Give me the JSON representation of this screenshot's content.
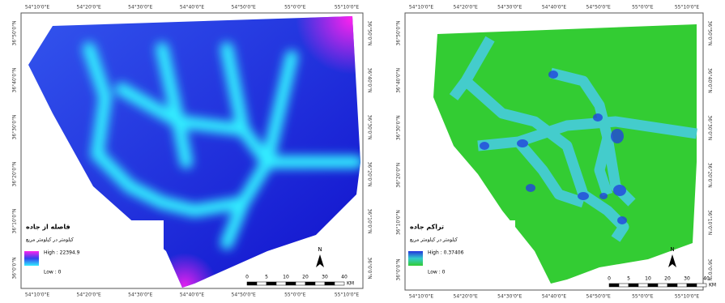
{
  "maps": [
    {
      "legend": {
        "title": "فاصله از جاده",
        "subtitle": "کیلومتر در کیلومتر مربع",
        "high": "High : 22394.9",
        "low": "Low : 0"
      },
      "north": "N",
      "scale": {
        "labels": [
          "0",
          "5",
          "10",
          "20",
          "30",
          "40"
        ],
        "unit": "KM"
      },
      "top_ticks": [
        "54°10'0\"E",
        "54°20'0\"E",
        "54°30'0\"E",
        "54°40'0\"E",
        "54°50'0\"E",
        "55°0'0\"E",
        "55°10'0\"E"
      ],
      "bottom_ticks": [
        "54°10'0\"E",
        "54°20'0\"E",
        "54°30'0\"E",
        "54°40'0\"E",
        "54°50'0\"E",
        "55°0'0\"E",
        "55°10'0\"E"
      ],
      "left_ticks": [
        "36°50'0\"N",
        "36°40'0\"N",
        "36°30'0\"N",
        "36°20'0\"N",
        "36°10'0\"N",
        "36°0'0\"N"
      ],
      "right_ticks": [
        "36°50'0\"N",
        "36°40'0\"N",
        "36°30'0\"N",
        "36°20'0\"N",
        "36°10'0\"N",
        "36°0'0\"N"
      ]
    },
    {
      "legend": {
        "title": "تراکم جاده",
        "subtitle": "کیلومتر در کیلومتر مربع",
        "high": "High : 0.37406",
        "low": "Low : 0"
      },
      "north": "N",
      "scale": {
        "labels": [
          "0",
          "5",
          "10",
          "20",
          "30",
          "40"
        ],
        "unit": "KM"
      },
      "top_ticks": [
        "54°10'0\"E",
        "54°20'0\"E",
        "54°30'0\"E",
        "54°40'0\"E",
        "54°50'0\"E",
        "55°0'0\"E",
        "55°10'0\"E"
      ],
      "bottom_ticks": [
        "54°10'0\"E",
        "54°20'0\"E",
        "54°30'0\"E",
        "54°40'0\"E",
        "54°50'0\"E",
        "55°0'0\"E",
        "55°10'0\"E"
      ],
      "left_ticks": [
        "36°50'0\"N",
        "36°40'0\"N",
        "36°30'0\"N",
        "36°20'0\"N",
        "36°10'0\"N",
        "36°0'0\"N"
      ],
      "right_ticks": [
        "36°50'0\"N",
        "36°40'0\"N",
        "36°30'0\"N",
        "36°20'0\"N",
        "36°10'0\"N",
        "36°0'0\"N"
      ]
    }
  ]
}
